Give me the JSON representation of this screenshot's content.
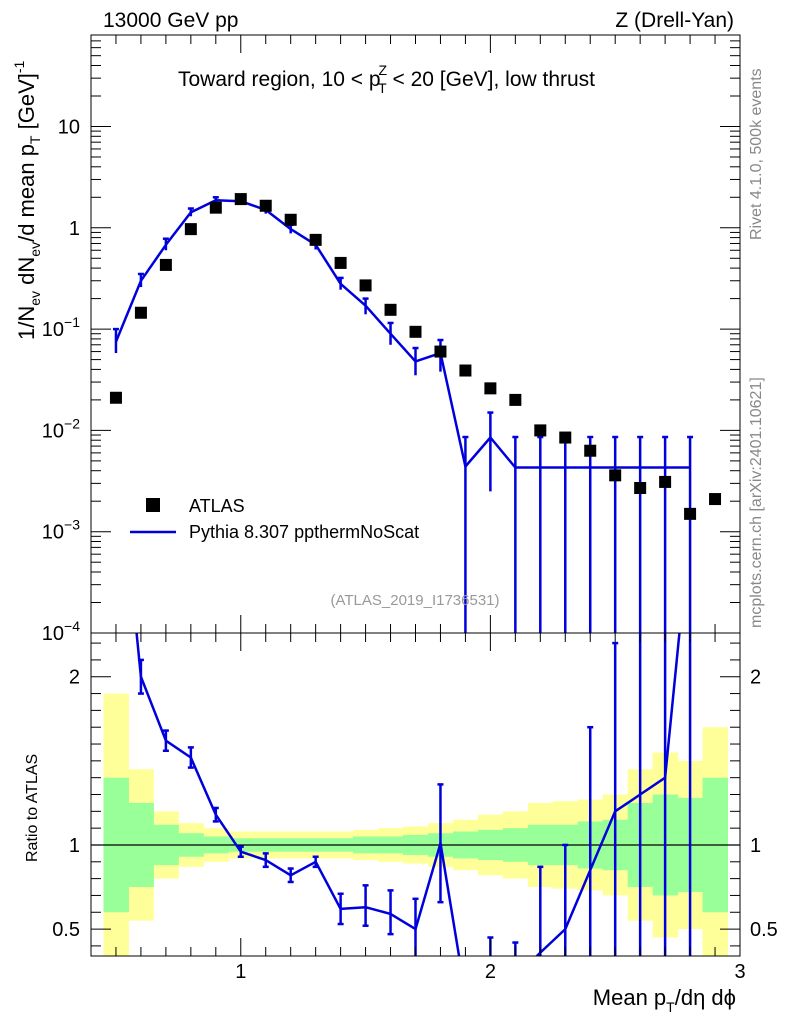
{
  "header": {
    "energy_label": "13000 GeV pp",
    "process_label": "Z (Drell-Yan)"
  },
  "side_labels": {
    "rivet": "Rivet 4.1.0,  500k events",
    "mcplots": "mcplots.cern.ch [arXiv:2401.10621]"
  },
  "chart_data": [
    {
      "type": "scatter",
      "panel": "main",
      "title": {
        "prefix": "Toward region, 10 < p",
        "sub": "T",
        "sup": "Z",
        "suffix": " < 20 [GeV], low thrust"
      },
      "ylabel": {
        "p1": "1/N",
        "s1": "ev",
        "p2": " dN",
        "s2": "ev",
        "p3": "/d mean p",
        "s3": "T",
        "p4": " [GeV]",
        "sup": "-1"
      },
      "yscale": "log",
      "ylim": [
        0.0001,
        80
      ],
      "xlim": [
        0.4,
        3.0
      ],
      "y_ticks": [
        {
          "value": 10,
          "base": "10",
          "exp": ""
        },
        {
          "value": 1,
          "base": "1",
          "exp": ""
        },
        {
          "value": 0.1,
          "base": "10",
          "exp": "−1"
        },
        {
          "value": 0.01,
          "base": "10",
          "exp": "−2"
        },
        {
          "value": 0.001,
          "base": "10",
          "exp": "−3"
        },
        {
          "value": 0.0001,
          "base": "10",
          "exp": "−4"
        }
      ],
      "analysis_tag": "(ATLAS_2019_I1736531)",
      "legend": {
        "position": "bottom-left",
        "entries": [
          {
            "label": "ATLAS",
            "marker": "square",
            "color": "#000000"
          },
          {
            "label": "Pythia 8.307 ppthermNoScat",
            "marker": "line",
            "color": "#0000dd"
          }
        ]
      },
      "series": [
        {
          "name": "ATLAS",
          "color": "#000000",
          "x": [
            0.5,
            0.6,
            0.7,
            0.8,
            0.9,
            1.0,
            1.1,
            1.2,
            1.3,
            1.4,
            1.5,
            1.6,
            1.7,
            1.8,
            1.9,
            2.0,
            2.1,
            2.2,
            2.3,
            2.4,
            2.5,
            2.6,
            2.7,
            2.8,
            2.9
          ],
          "y": [
            0.021,
            0.145,
            0.43,
            0.97,
            1.58,
            1.92,
            1.65,
            1.2,
            0.76,
            0.45,
            0.27,
            0.155,
            0.094,
            0.06,
            0.039,
            0.026,
            0.02,
            0.01,
            0.0085,
            0.0063,
            0.0036,
            0.0027,
            0.0031,
            0.0015,
            0.0021
          ]
        },
        {
          "name": "Pythia 8.307 ppthermNoScat",
          "color": "#0000dd",
          "x": [
            0.5,
            0.6,
            0.7,
            0.8,
            0.9,
            1.0,
            1.1,
            1.2,
            1.3,
            1.4,
            1.5,
            1.6,
            1.7,
            1.8,
            1.9,
            2.0,
            2.1,
            2.2,
            2.3,
            2.4,
            2.5,
            2.6,
            2.7,
            2.8
          ],
          "y": [
            0.075,
            0.3,
            0.68,
            1.42,
            1.87,
            1.83,
            1.5,
            0.97,
            0.68,
            0.28,
            0.17,
            0.09,
            0.048,
            0.058,
            0.0044,
            0.0085,
            0.0043,
            0.0043,
            0.0043,
            0.0043,
            0.0043,
            0.0043,
            0.0043,
            0.0043
          ],
          "err_up": [
            0.1,
            0.35,
            0.78,
            1.55,
            2.0,
            1.95,
            1.62,
            1.07,
            0.76,
            0.32,
            0.2,
            0.115,
            0.065,
            0.078,
            0.0086,
            0.015,
            0.0086,
            0.0086,
            0.0086,
            0.0086,
            0.0086,
            0.0086,
            0.0086,
            0.0086
          ],
          "err_down": [
            0.058,
            0.26,
            0.6,
            1.3,
            1.75,
            1.72,
            1.38,
            0.88,
            0.61,
            0.245,
            0.14,
            0.07,
            0.035,
            0.038,
            0.0001,
            0.0025,
            0.0001,
            0.0001,
            0.0001,
            0.0001,
            0.0001,
            0.0001,
            0.0001,
            0.0001
          ]
        }
      ]
    },
    {
      "type": "line",
      "panel": "ratio",
      "ylabel": "Ratio to ATLAS",
      "xlabel": {
        "p1": "Mean p",
        "s1": "T",
        "p2": "/dη dϕ"
      },
      "xlim": [
        0.4,
        3.0
      ],
      "ylim": [
        0.34,
        2.26
      ],
      "x_ticks": [
        {
          "value": 1,
          "label": "1"
        },
        {
          "value": 2,
          "label": "2"
        },
        {
          "value": 3,
          "label": "3"
        }
      ],
      "y_ticks": [
        {
          "value": 0.5,
          "label": "0.5"
        },
        {
          "value": 1,
          "label": "1"
        },
        {
          "value": 2,
          "label": "2"
        }
      ],
      "band_colors": {
        "inner": "#99ff99",
        "outer": "#ffff99"
      },
      "bands": {
        "x_edges": [
          0.45,
          0.55,
          0.65,
          0.75,
          0.85,
          0.95,
          1.05,
          1.15,
          1.25,
          1.35,
          1.45,
          1.55,
          1.65,
          1.75,
          1.85,
          1.95,
          2.05,
          2.15,
          2.25,
          2.35,
          2.45,
          2.55,
          2.65,
          2.75,
          2.85,
          2.95
        ],
        "inner_lo": [
          0.6,
          0.75,
          0.88,
          0.93,
          0.95,
          0.96,
          0.96,
          0.96,
          0.96,
          0.96,
          0.95,
          0.95,
          0.94,
          0.93,
          0.92,
          0.91,
          0.9,
          0.88,
          0.88,
          0.86,
          0.85,
          0.75,
          0.7,
          0.72,
          0.6
        ],
        "inner_hi": [
          1.4,
          1.25,
          1.12,
          1.07,
          1.05,
          1.04,
          1.04,
          1.04,
          1.04,
          1.04,
          1.05,
          1.05,
          1.06,
          1.07,
          1.08,
          1.09,
          1.1,
          1.12,
          1.12,
          1.14,
          1.15,
          1.25,
          1.3,
          1.28,
          1.4
        ],
        "outer_lo": [
          0.34,
          0.55,
          0.8,
          0.87,
          0.9,
          0.92,
          0.92,
          0.92,
          0.92,
          0.92,
          0.91,
          0.9,
          0.89,
          0.87,
          0.85,
          0.82,
          0.8,
          0.75,
          0.74,
          0.73,
          0.7,
          0.55,
          0.45,
          0.5,
          0.34
        ],
        "outer_hi": [
          1.9,
          1.45,
          1.2,
          1.13,
          1.1,
          1.08,
          1.08,
          1.08,
          1.08,
          1.08,
          1.09,
          1.1,
          1.11,
          1.13,
          1.15,
          1.18,
          1.2,
          1.25,
          1.26,
          1.27,
          1.3,
          1.45,
          1.55,
          1.5,
          1.7
        ]
      },
      "reference_line": 1,
      "series": [
        {
          "name": "Pythia 8.307 ppthermNoScat / ATLAS",
          "color": "#0000dd",
          "x": [
            0.5,
            0.6,
            0.7,
            0.8,
            0.9,
            1.0,
            1.1,
            1.2,
            1.3,
            1.4,
            1.5,
            1.6,
            1.7,
            1.8,
            1.9,
            2.0,
            2.1,
            2.2,
            2.3,
            2.4,
            2.5,
            2.6,
            2.7,
            2.8
          ],
          "y": [
            3.5,
            2.0,
            1.62,
            1.52,
            1.18,
            0.96,
            0.91,
            0.82,
            0.9,
            0.62,
            0.63,
            0.59,
            0.5,
            1.01,
            0.11,
            0.32,
            0.21,
            0.36,
            0.5,
            0.85,
            1.2,
            1.3,
            1.4,
            2.9
          ],
          "err_up": [
            3.6,
            2.1,
            1.68,
            1.58,
            1.22,
            0.99,
            0.95,
            0.86,
            0.93,
            0.71,
            0.76,
            0.73,
            0.68,
            1.36,
            0.2,
            0.45,
            0.42,
            0.87,
            1.0,
            1.7,
            2.2,
            2.6,
            2.8,
            5.0
          ],
          "err_down": [
            3.4,
            1.9,
            1.56,
            1.46,
            1.14,
            0.93,
            0.87,
            0.78,
            0.87,
            0.53,
            0.52,
            0.47,
            0.33,
            0.66,
            0.0,
            0.19,
            0.0,
            0.0,
            0.0,
            0.0,
            0.0,
            0.0,
            0.0,
            0.0
          ]
        }
      ]
    }
  ]
}
